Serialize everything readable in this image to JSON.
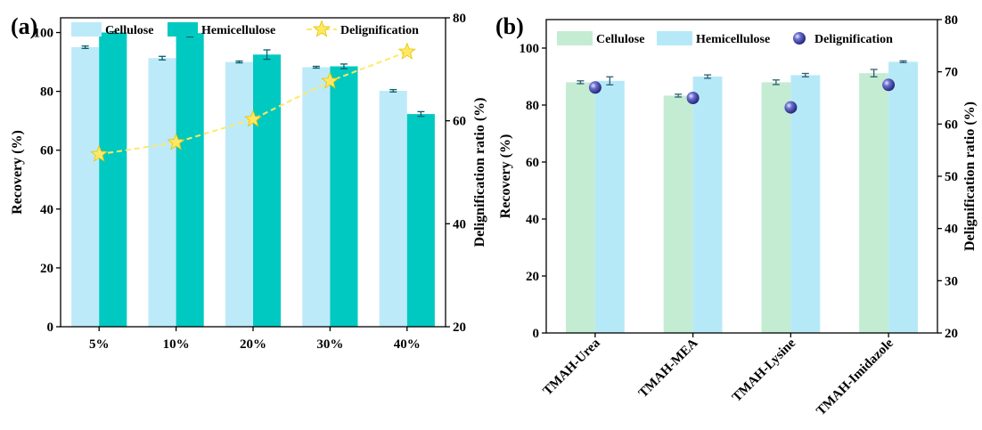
{
  "chart_data": [
    {
      "type": "bar",
      "panel_label": "(a)",
      "categories": [
        "5%",
        "10%",
        "20%",
        "30%",
        "40%"
      ],
      "series": [
        {
          "name": "Cellulose",
          "color": "#bdeaf9",
          "values": [
            95.0,
            91.3,
            90.0,
            88.2,
            80.2
          ],
          "errors": [
            0.4,
            0.6,
            0.3,
            0.3,
            0.4
          ]
        },
        {
          "name": "Hemicellulose",
          "color": "#00c9c1",
          "values": [
            100.0,
            99.8,
            92.5,
            88.5,
            72.3
          ],
          "errors": [
            0.3,
            1.3,
            1.6,
            0.8,
            0.8
          ]
        }
      ],
      "line_series": {
        "name": "Delignification",
        "color": "#ffe866",
        "values": [
          53.5,
          55.8,
          60.3,
          67.7,
          73.4
        ]
      },
      "ylabel": "Recovery (%)",
      "y2label": "Delignification ratio (%)",
      "ylim": [
        0,
        105
      ],
      "y2lim": [
        20,
        80
      ],
      "yticks": [
        "0",
        "20",
        "40",
        "60",
        "80",
        "100"
      ],
      "y2ticks": [
        "20",
        "40",
        "60",
        "80"
      ],
      "legend": "top"
    },
    {
      "type": "bar",
      "panel_label": "(b)",
      "categories": [
        "TMAH-Urea",
        "TMAH-MEA",
        "TMAH-Lysine",
        "TMAH-Imidazole"
      ],
      "series": [
        {
          "name": "Cellulose",
          "color": "#c4ecd2",
          "values": [
            88.0,
            83.3,
            88.0,
            91.2
          ],
          "errors": [
            0.5,
            0.5,
            0.8,
            1.3
          ]
        },
        {
          "name": "Hemicellulose",
          "color": "#b6e9f8",
          "values": [
            88.5,
            90.0,
            90.5,
            95.2
          ],
          "errors": [
            1.4,
            0.6,
            0.6,
            0.3
          ]
        }
      ],
      "scatter_series": {
        "name": "Delignification",
        "color": "#3d3f9e",
        "values": [
          67.0,
          65.0,
          63.2,
          67.5
        ]
      },
      "ylabel": "Recovery (%)",
      "y2label": "Delignification ratio (%)",
      "ylim": [
        0,
        110
      ],
      "y2lim": [
        20,
        80
      ],
      "yticks": [
        "0",
        "20",
        "40",
        "60",
        "80",
        "100"
      ],
      "y2ticks": [
        "20",
        "30",
        "40",
        "50",
        "60",
        "70",
        "80"
      ],
      "legend": "top"
    }
  ]
}
